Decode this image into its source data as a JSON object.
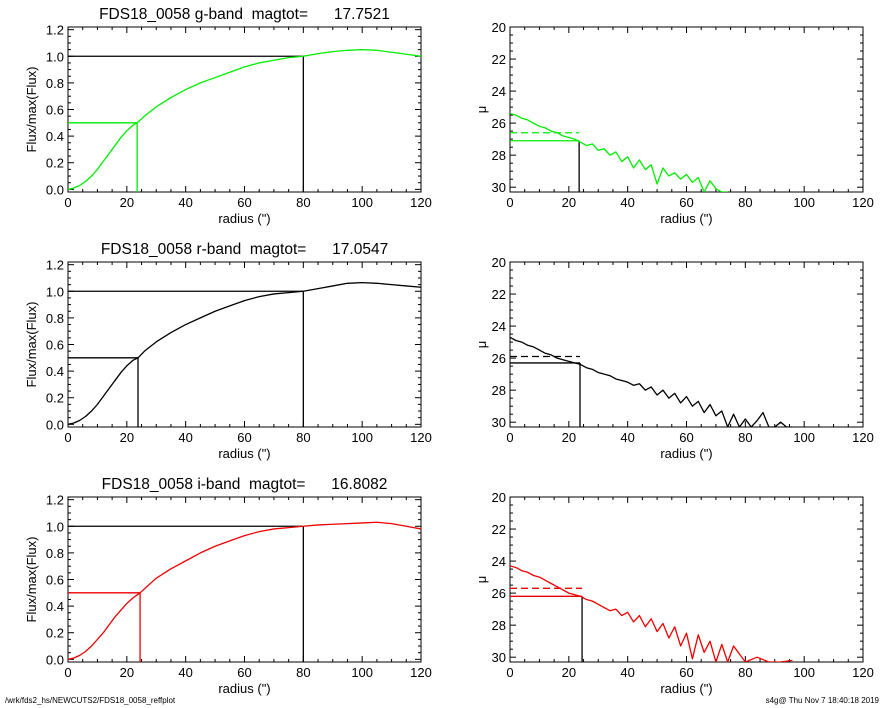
{
  "footer": {
    "left": "/wrk/fds2_hs/NEWCUTS2/FDS18_0058_reffplot",
    "right": "s4g@  Thu Nov  7 18:40:18 2019"
  },
  "chart_data": [
    {
      "type": "line",
      "panel": "g-band growth curve",
      "title": "FDS18_0058 g-band  magtot=      17.7521",
      "xlabel": "radius (\")",
      "ylabel": "Flux/max(Flux)",
      "xlim": [
        0,
        120
      ],
      "ylim": [
        -0.02,
        1.22
      ],
      "xticks": [
        0,
        20,
        40,
        60,
        80,
        100,
        120
      ],
      "yticks": [
        0.0,
        0.2,
        0.4,
        0.6,
        0.8,
        1.0,
        1.2
      ],
      "ytick_labels": [
        "0.0",
        "0.2",
        "0.4",
        "0.6",
        "0.8",
        "1.0",
        "1.2"
      ],
      "color": "#00ee00",
      "reff": 23.5,
      "r_tot": 80,
      "x": [
        0,
        2,
        4,
        6,
        8,
        10,
        12,
        14,
        16,
        18,
        20,
        22,
        23.5,
        26,
        30,
        35,
        40,
        45,
        50,
        55,
        60,
        65,
        70,
        75,
        80,
        85,
        90,
        95,
        100,
        105,
        110,
        115,
        120
      ],
      "y": [
        0.0,
        0.01,
        0.03,
        0.06,
        0.1,
        0.15,
        0.21,
        0.27,
        0.33,
        0.39,
        0.44,
        0.48,
        0.5,
        0.55,
        0.62,
        0.69,
        0.75,
        0.8,
        0.84,
        0.88,
        0.92,
        0.95,
        0.97,
        0.99,
        1.0,
        1.02,
        1.035,
        1.045,
        1.05,
        1.045,
        1.03,
        1.015,
        1.0
      ]
    },
    {
      "type": "line",
      "panel": "g-band surface brightness profile",
      "xlabel": "radius (\")",
      "ylabel": "μ",
      "xlim": [
        0,
        120
      ],
      "ylim": [
        30.3,
        20
      ],
      "xticks": [
        0,
        20,
        40,
        60,
        80,
        100,
        120
      ],
      "yticks": [
        20,
        22,
        24,
        26,
        28,
        30
      ],
      "color": "#00ee00",
      "reff": 23.5,
      "mu_eff": 27.1,
      "mu_mean_eff": 26.6,
      "x": [
        0,
        2,
        4,
        6,
        8,
        10,
        12,
        14,
        16,
        18,
        20,
        22,
        24,
        26,
        28,
        30,
        32,
        34,
        36,
        38,
        40,
        42,
        44,
        46,
        48,
        50,
        52,
        54,
        56,
        58,
        60,
        62,
        64,
        66,
        68,
        70,
        72,
        74
      ],
      "y": [
        25.4,
        25.5,
        25.7,
        25.8,
        26.0,
        26.2,
        26.3,
        26.5,
        26.6,
        26.8,
        26.9,
        27.0,
        27.2,
        27.4,
        27.3,
        27.7,
        27.6,
        28.0,
        27.8,
        28.4,
        28.1,
        28.8,
        28.3,
        28.9,
        28.6,
        29.8,
        28.8,
        29.3,
        29.1,
        29.5,
        29.2,
        29.7,
        29.4,
        30.3,
        29.6,
        30.1,
        30.3,
        30.3
      ]
    },
    {
      "type": "line",
      "panel": "r-band growth curve",
      "title": "FDS18_0058 r-band  magtot=      17.0547",
      "xlabel": "radius (\")",
      "ylabel": "Flux/max(Flux)",
      "xlim": [
        0,
        120
      ],
      "ylim": [
        -0.02,
        1.22
      ],
      "xticks": [
        0,
        20,
        40,
        60,
        80,
        100,
        120
      ],
      "yticks": [
        0.0,
        0.2,
        0.4,
        0.6,
        0.8,
        1.0,
        1.2
      ],
      "ytick_labels": [
        "0.0",
        "0.2",
        "0.4",
        "0.6",
        "0.8",
        "1.0",
        "1.2"
      ],
      "color": "#000000",
      "reff": 23.8,
      "r_tot": 80,
      "x": [
        0,
        2,
        4,
        6,
        8,
        10,
        12,
        14,
        16,
        18,
        20,
        22,
        23.8,
        26,
        30,
        35,
        40,
        45,
        50,
        55,
        60,
        65,
        70,
        75,
        80,
        85,
        90,
        95,
        100,
        105,
        110,
        115,
        120
      ],
      "y": [
        0.0,
        0.01,
        0.03,
        0.06,
        0.1,
        0.15,
        0.21,
        0.27,
        0.33,
        0.39,
        0.44,
        0.48,
        0.5,
        0.55,
        0.62,
        0.69,
        0.75,
        0.8,
        0.85,
        0.89,
        0.93,
        0.96,
        0.98,
        0.99,
        1.0,
        1.02,
        1.04,
        1.06,
        1.065,
        1.06,
        1.05,
        1.04,
        1.03
      ]
    },
    {
      "type": "line",
      "panel": "r-band surface brightness profile",
      "xlabel": "radius (\")",
      "ylabel": "μ",
      "xlim": [
        0,
        120
      ],
      "ylim": [
        30.3,
        20
      ],
      "xticks": [
        0,
        20,
        40,
        60,
        80,
        100,
        120
      ],
      "yticks": [
        20,
        22,
        24,
        26,
        28,
        30
      ],
      "color": "#000000",
      "reff": 23.8,
      "mu_eff": 26.3,
      "mu_mean_eff": 25.9,
      "x": [
        0,
        2,
        4,
        6,
        8,
        10,
        12,
        14,
        16,
        18,
        20,
        22,
        24,
        26,
        28,
        30,
        32,
        34,
        36,
        38,
        40,
        42,
        44,
        46,
        48,
        50,
        52,
        54,
        56,
        58,
        60,
        62,
        64,
        66,
        68,
        70,
        72,
        74,
        76,
        78,
        80,
        82,
        84,
        86,
        88,
        90,
        92,
        94,
        96
      ],
      "y": [
        24.7,
        24.9,
        25.0,
        25.2,
        25.3,
        25.5,
        25.7,
        25.8,
        26.0,
        26.1,
        26.2,
        26.3,
        26.4,
        26.6,
        26.7,
        26.9,
        27.0,
        27.1,
        27.3,
        27.4,
        27.5,
        27.7,
        27.6,
        28.0,
        27.8,
        28.3,
        28.0,
        28.5,
        28.2,
        28.8,
        28.4,
        29.0,
        28.7,
        29.4,
        28.9,
        29.6,
        29.3,
        30.3,
        29.5,
        30.3,
        29.8,
        30.3,
        29.9,
        29.4,
        30.3,
        30.3,
        30.0,
        30.3,
        30.3
      ]
    },
    {
      "type": "line",
      "panel": "i-band growth curve",
      "title": "FDS18_0058 i-band  magtot=      16.8082",
      "xlabel": "radius (\")",
      "ylabel": "Flux/max(Flux)",
      "xlim": [
        0,
        120
      ],
      "ylim": [
        -0.02,
        1.22
      ],
      "xticks": [
        0,
        20,
        40,
        60,
        80,
        100,
        120
      ],
      "yticks": [
        0.0,
        0.2,
        0.4,
        0.6,
        0.8,
        1.0,
        1.2
      ],
      "ytick_labels": [
        "0.0",
        "0.2",
        "0.4",
        "0.6",
        "0.8",
        "1.0",
        "1.2"
      ],
      "color": "#ee0000",
      "reff": 24.5,
      "r_tot": 80,
      "x": [
        0,
        2,
        4,
        6,
        8,
        10,
        12,
        14,
        16,
        18,
        20,
        22,
        24.5,
        27,
        30,
        35,
        40,
        45,
        50,
        55,
        60,
        65,
        70,
        75,
        80,
        85,
        90,
        95,
        100,
        105,
        110,
        115,
        120
      ],
      "y": [
        0.0,
        0.01,
        0.03,
        0.06,
        0.1,
        0.15,
        0.2,
        0.26,
        0.32,
        0.37,
        0.42,
        0.46,
        0.5,
        0.55,
        0.61,
        0.68,
        0.74,
        0.8,
        0.85,
        0.89,
        0.93,
        0.96,
        0.98,
        0.99,
        1.0,
        1.01,
        1.015,
        1.02,
        1.025,
        1.03,
        1.02,
        1.0,
        0.98
      ]
    },
    {
      "type": "line",
      "panel": "i-band surface brightness profile",
      "xlabel": "radius (\")",
      "ylabel": "μ",
      "xlim": [
        0,
        120
      ],
      "ylim": [
        30.3,
        20
      ],
      "xticks": [
        0,
        20,
        40,
        60,
        80,
        100,
        120
      ],
      "yticks": [
        20,
        22,
        24,
        26,
        28,
        30
      ],
      "color": "#ee0000",
      "reff": 24.5,
      "mu_eff": 26.2,
      "mu_mean_eff": 25.7,
      "x": [
        0,
        2,
        4,
        6,
        8,
        10,
        12,
        14,
        16,
        18,
        20,
        22,
        24,
        26,
        28,
        30,
        32,
        34,
        36,
        38,
        40,
        42,
        44,
        46,
        48,
        50,
        52,
        54,
        56,
        58,
        60,
        62,
        64,
        66,
        68,
        70,
        72,
        74,
        76,
        78,
        80,
        84,
        88,
        92,
        96
      ],
      "y": [
        24.3,
        24.4,
        24.6,
        24.7,
        24.9,
        25.0,
        25.2,
        25.4,
        25.6,
        25.8,
        26.0,
        26.1,
        26.2,
        26.4,
        26.5,
        26.7,
        26.9,
        27.1,
        27.0,
        27.4,
        27.2,
        27.8,
        27.4,
        28.1,
        27.6,
        28.4,
        27.9,
        28.8,
        28.1,
        29.3,
        28.5,
        30.1,
        28.6,
        29.7,
        29.0,
        30.3,
        29.2,
        30.3,
        29.3,
        29.8,
        30.3,
        30.0,
        30.3,
        30.3,
        30.2
      ]
    }
  ]
}
